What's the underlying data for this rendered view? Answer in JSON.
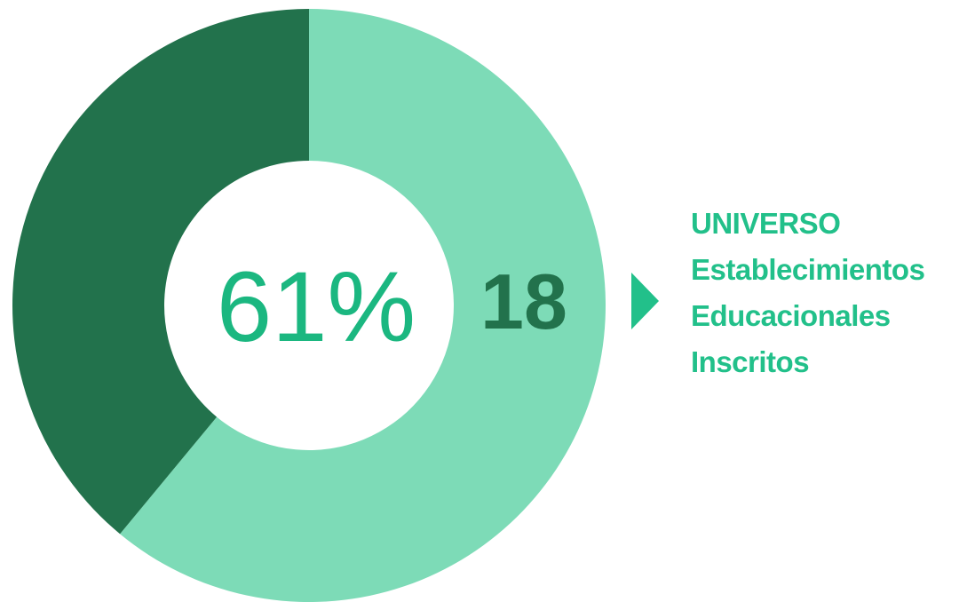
{
  "colors": {
    "primary_segment": "#7ddbb7",
    "secondary_segment": "#22724c",
    "percent_text": "#1bb780",
    "count_text": "#22724c",
    "accent_text": "#22c08a",
    "arrow": "#22c08a",
    "background": "#ffffff"
  },
  "chart_data": {
    "type": "pie",
    "variant": "donut",
    "slices": [
      {
        "value": 61,
        "color_key": "primary_segment"
      },
      {
        "value": 39,
        "color_key": "secondary_segment"
      }
    ],
    "center_label": "61%",
    "count_label": "18"
  },
  "caption": {
    "line1": "UNIVERSO",
    "line2": "Establecimientos",
    "line3": "Educacionales",
    "line4": "Inscritos"
  },
  "pointer": {
    "icon": "triangle-right-icon"
  }
}
